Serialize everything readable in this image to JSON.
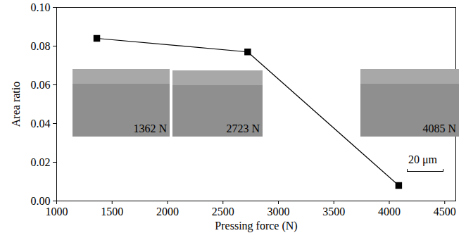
{
  "chart_data": {
    "type": "line",
    "x": [
      1362,
      2723,
      4085
    ],
    "values": [
      0.084,
      0.077,
      0.008
    ],
    "color": "#000000",
    "marker": "square",
    "line_style": "solid",
    "xlabel": "Pressing force (N)",
    "ylabel": "Area ratio",
    "xlim": [
      1000,
      4600
    ],
    "xticks": [
      1000,
      1500,
      2000,
      2500,
      3000,
      3500,
      4000,
      4500
    ],
    "ylim": [
      0,
      0.1
    ],
    "yticks": [
      {
        "value": 0,
        "label": "0.00"
      },
      {
        "value": 0.02,
        "label": "0.02"
      },
      {
        "value": 0.04,
        "label": "0.04"
      },
      {
        "value": 0.06,
        "label": "0.06"
      },
      {
        "value": 0.08,
        "label": "0.08"
      },
      {
        "value": 0.1,
        "label": "0.10"
      }
    ],
    "grid": false,
    "annotations": [
      "1362 N",
      "2723 N",
      "4085 N"
    ],
    "scale_bar_label": "20 μm"
  }
}
